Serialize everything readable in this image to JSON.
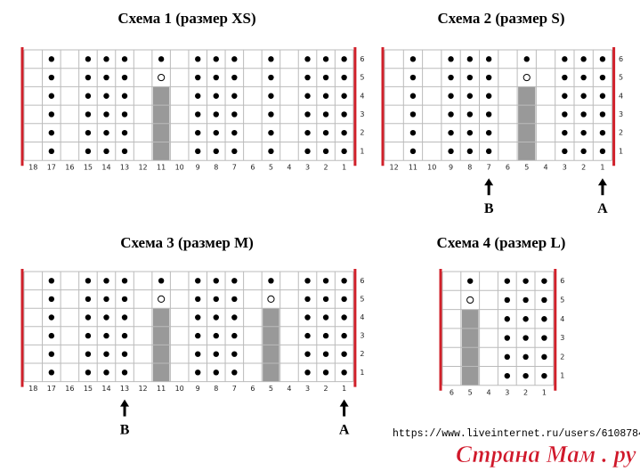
{
  "schemes": [
    {
      "title": "Схема 1 (размер XS)",
      "columns": [
        "18",
        "17",
        "16",
        "15",
        "14",
        "13",
        "12",
        "11",
        "10",
        "9",
        "8",
        "7",
        "6",
        "5",
        "4",
        "3",
        "2",
        "1"
      ],
      "rows": [
        "6",
        "5",
        "4",
        "3",
        "2",
        "1"
      ],
      "arrows": []
    },
    {
      "title": "Схема 2 (размер S)",
      "columns": [
        "12",
        "11",
        "10",
        "9",
        "8",
        "7",
        "6",
        "5",
        "4",
        "3",
        "2",
        "1"
      ],
      "rows": [
        "6",
        "5",
        "4",
        "3",
        "2",
        "1"
      ],
      "arrows": [
        "B",
        "A"
      ]
    },
    {
      "title": "Схема 3 (размер M)",
      "columns": [
        "18",
        "17",
        "16",
        "15",
        "14",
        "13",
        "12",
        "11",
        "10",
        "9",
        "8",
        "7",
        "6",
        "5",
        "4",
        "3",
        "2",
        "1"
      ],
      "rows": [
        "6",
        "5",
        "4",
        "3",
        "2",
        "1"
      ],
      "arrows": [
        "B",
        "A"
      ]
    },
    {
      "title": "Схема 4 (размер L)",
      "columns": [
        "6",
        "5",
        "4",
        "3",
        "2",
        "1"
      ],
      "rows": [
        "6",
        "5",
        "4",
        "3",
        "2",
        "1"
      ],
      "arrows": []
    }
  ],
  "url": "https://www.liveinternet.ru/users/6108784/",
  "watermark": "Страна Мам . ру"
}
